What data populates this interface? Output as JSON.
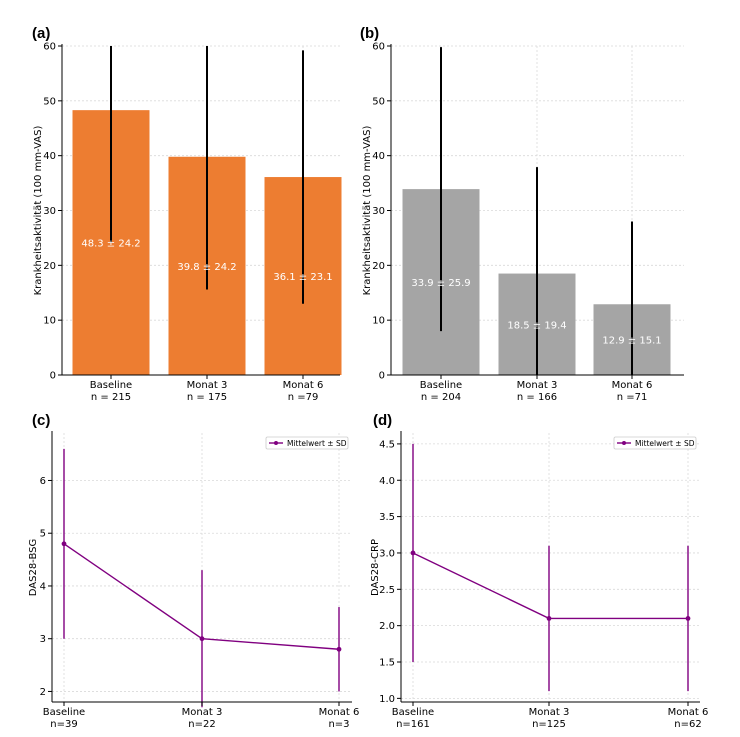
{
  "panel_labels": [
    "(a)",
    "(b)",
    "(c)",
    "(d)"
  ],
  "colors": {
    "orange": "#ED7D31",
    "gray": "#A5A5A5",
    "purple": "#800080"
  },
  "chart_data": [
    {
      "type": "bar",
      "panel": "(a)",
      "ylabel": "Krankheitsaktivität (100 mm-VAS)",
      "ylim": [
        0,
        60
      ],
      "yticks": [
        0,
        10,
        20,
        30,
        40,
        50,
        60
      ],
      "categories": [
        "Baseline",
        "Monat 3",
        "Monat 6"
      ],
      "category_sublabels": [
        "n = 215",
        "n = 175",
        "n =79"
      ],
      "values": [
        48.3,
        39.8,
        36.1
      ],
      "sd": [
        24.2,
        24.2,
        23.1
      ],
      "bar_labels": [
        "48.3 ± 24.2",
        "39.8 ± 24.2",
        "36.1 ± 23.1"
      ],
      "color": "#ED7D31",
      "grid": true
    },
    {
      "type": "bar",
      "panel": "(b)",
      "ylabel": "Krankheitsaktivität (100 mm-VAS)",
      "ylim": [
        0,
        60
      ],
      "yticks": [
        0,
        10,
        20,
        30,
        40,
        50,
        60
      ],
      "categories": [
        "Baseline",
        "Monat 3",
        "Monat 6"
      ],
      "category_sublabels": [
        "n = 204",
        "n = 166",
        "n =71"
      ],
      "values": [
        33.9,
        18.5,
        12.9
      ],
      "sd": [
        25.9,
        19.4,
        15.1
      ],
      "bar_labels": [
        "33.9 ± 25.9",
        "18.5 ± 19.4",
        "12.9 ± 15.1"
      ],
      "color": "#A5A5A5",
      "grid": true
    },
    {
      "type": "line",
      "panel": "(c)",
      "ylabel": "DAS28-BSG",
      "ylim": [
        1.8,
        6.9
      ],
      "yticks": [
        2,
        3,
        4,
        5,
        6
      ],
      "ytick_labels": [
        "2",
        "3",
        "4",
        "5",
        "6"
      ],
      "categories": [
        "Baseline",
        "Monat 3",
        "Monat 6"
      ],
      "category_sublabels": [
        "n=39",
        "n=22",
        "n=3"
      ],
      "series": [
        {
          "name": "Mittelwert ± SD",
          "values": [
            4.8,
            3.0,
            2.8
          ],
          "sd": [
            1.8,
            1.3,
            0.8
          ]
        }
      ],
      "legend": "top-right",
      "color": "#800080",
      "grid": true
    },
    {
      "type": "line",
      "panel": "(d)",
      "ylabel": "DAS28-CRP",
      "ylim": [
        0.95,
        4.65
      ],
      "yticks": [
        1.0,
        1.5,
        2.0,
        2.5,
        3.0,
        3.5,
        4.0,
        4.5
      ],
      "ytick_labels": [
        "1.0",
        "1.5",
        "2.0",
        "2.5",
        "3.0",
        "3.5",
        "4.0",
        "4.5"
      ],
      "categories": [
        "Baseline",
        "Monat 3",
        "Monat 6"
      ],
      "category_sublabels": [
        "n=161",
        "n=125",
        "n=62"
      ],
      "series": [
        {
          "name": "Mittelwert ± SD",
          "values": [
            3.0,
            2.1,
            2.1
          ],
          "sd": [
            1.5,
            1.0,
            1.0
          ]
        }
      ],
      "legend": "top-right",
      "color": "#800080",
      "grid": true
    }
  ]
}
